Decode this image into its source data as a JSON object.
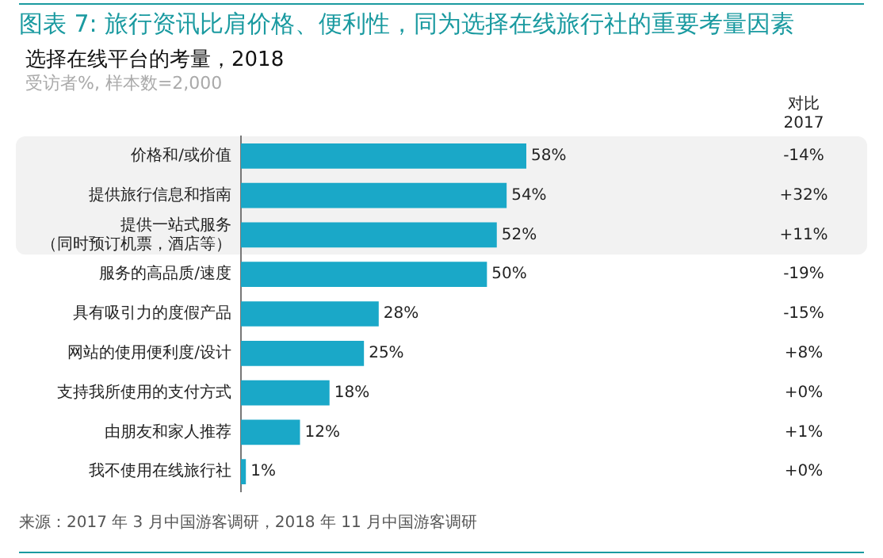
{
  "chart_data": {
    "type": "bar",
    "orientation": "horizontal",
    "title": "图表 7: 旅行资讯比肩价格、便利性，同为选择在线旅行社的重要考量因素",
    "subtitle": "选择在线平台的考量，2018",
    "categories": [
      "价格和/或价值",
      "提供旅行信息和指南",
      "提供一站式服务（同时预订机票，酒店等）",
      "服务的高品质/速度",
      "具有吸引力的度假产品",
      "网站的使用便利度/设计",
      "支持我所使用的支付方式",
      "由朋友和家人推荐",
      "我不使用在线旅行社"
    ],
    "values": [
      58,
      54,
      52,
      50,
      28,
      25,
      18,
      12,
      1
    ],
    "value_labels": [
      "58%",
      "54%",
      "52%",
      "50%",
      "28%",
      "25%",
      "18%",
      "12%",
      "1%"
    ],
    "color": "#1aa8c8",
    "bands": [
      {
        "axis": "y",
        "from": "价格和/或价值",
        "to": "提供一站式服务（同时预订机票，酒店等）",
        "color": "#f2f2f2"
      }
    ],
    "annotations": [
      "受访者%, 样本数=2,000",
      "对比 2017",
      "来源：2017 年 3 月中国游客调研，2018 年 11 月中国游客调研",
      "-14%",
      "+32%",
      "+11%",
      "-19%",
      "-15%",
      "+8%",
      "+0%",
      "+1%",
      "+0%"
    ],
    "grid": false,
    "legend": false
  }
}
